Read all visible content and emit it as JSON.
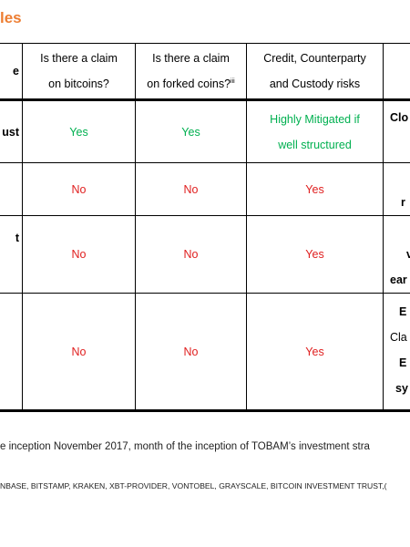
{
  "title": "les",
  "headers": {
    "col0": "e",
    "col1": [
      "Is there a claim",
      "on bitcoins?"
    ],
    "col2": [
      "Is there a claim",
      "on forked coins?"
    ],
    "col2_sup": "iii",
    "col3": [
      "Credit, Counterparty",
      "and Custody  risks"
    ]
  },
  "rows": [
    {
      "left": "ust",
      "c1": "Yes",
      "c2": "Yes",
      "c3": [
        "Highly Mitigated  if",
        "well structured"
      ],
      "right": [
        "Clo"
      ]
    },
    {
      "left": "",
      "c1": "No",
      "c2": "No",
      "c3": [
        "Yes"
      ],
      "right": [
        "",
        "r"
      ]
    },
    {
      "left": "t",
      "c1": "No",
      "c2": "No",
      "c3": [
        "Yes"
      ],
      "right": [
        "",
        "v",
        "ear"
      ]
    },
    {
      "left": "",
      "c1": "No",
      "c2": "No",
      "c3": [
        "Yes"
      ],
      "right": [
        "E",
        "Cla",
        "E",
        "sy"
      ]
    }
  ],
  "footnotes": {
    "line1": "e inception November 2017, month of the inception of TOBAM’s investment stra",
    "line2": "NBASE, BITSTAMP, KRAKEN, XBT-PROVIDER, VONTOBEL, GRAYSCALE,  BITCOIN INVESTMENT TRUST,("
  },
  "colors": {
    "title": "#ed7d31",
    "yes_positive": "#00b050",
    "negative": "#e02020"
  }
}
